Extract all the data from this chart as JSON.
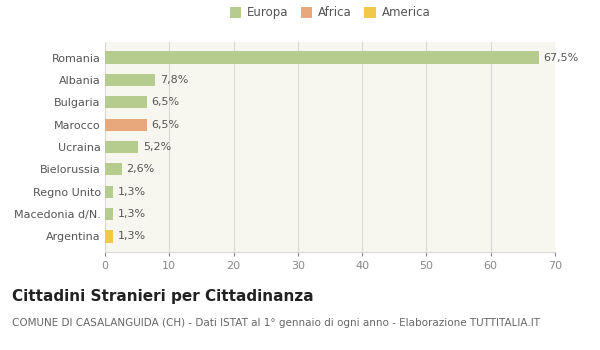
{
  "categories": [
    "Romania",
    "Albania",
    "Bulgaria",
    "Marocco",
    "Ucraina",
    "Bielorussia",
    "Regno Unito",
    "Macedonia d/N.",
    "Argentina"
  ],
  "values": [
    67.5,
    7.8,
    6.5,
    6.5,
    5.2,
    2.6,
    1.3,
    1.3,
    1.3
  ],
  "labels": [
    "67,5%",
    "7,8%",
    "6,5%",
    "6,5%",
    "5,2%",
    "2,6%",
    "1,3%",
    "1,3%",
    "1,3%"
  ],
  "colors": [
    "#b5cc8e",
    "#b5cc8e",
    "#b5cc8e",
    "#e8a87c",
    "#b5cc8e",
    "#b5cc8e",
    "#b5cc8e",
    "#b5cc8e",
    "#f0c84a"
  ],
  "legend_labels": [
    "Europa",
    "Africa",
    "America"
  ],
  "legend_colors": [
    "#b5cc8e",
    "#e8a87c",
    "#f0c84a"
  ],
  "title": "Cittadini Stranieri per Cittadinanza",
  "subtitle": "COMUNE DI CASALANGUIDA (CH) - Dati ISTAT al 1° gennaio di ogni anno - Elaborazione TUTTITALIA.IT",
  "xlim": [
    0,
    70
  ],
  "xticks": [
    0,
    10,
    20,
    30,
    40,
    50,
    60,
    70
  ],
  "plot_bg_color": "#f7f7ef",
  "fig_bg_color": "#ffffff",
  "grid_color": "#d8d8d8",
  "bar_height": 0.55,
  "title_fontsize": 11,
  "subtitle_fontsize": 7.5,
  "label_fontsize": 8,
  "tick_fontsize": 8,
  "legend_fontsize": 8.5
}
